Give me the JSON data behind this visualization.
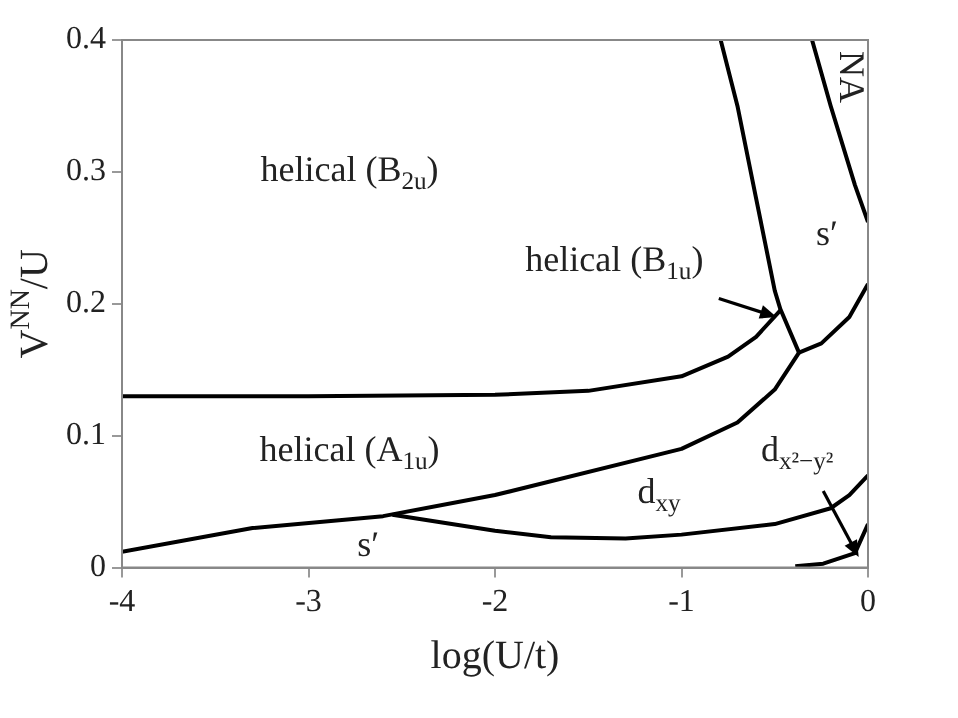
{
  "chart_data": {
    "type": "line",
    "xlabel": "log(U/t)",
    "ylabel": "V$^{NN}$/U",
    "xlim": [
      -4,
      0
    ],
    "xticks": [
      -4,
      -3,
      -2,
      -1,
      0
    ],
    "ylim": [
      0,
      0.4
    ],
    "yticks": [
      0,
      0.1,
      0.2,
      0.3,
      0.4
    ],
    "grid": false,
    "legend": false,
    "marker": "none",
    "line_style": "solid",
    "series": [
      {
        "color": "#000000",
        "x": [
          -4,
          -3,
          -2,
          -1.5,
          -1,
          -0.75,
          -0.6,
          -0.47
        ],
        "values": [
          0.13,
          0.13,
          0.131,
          0.134,
          0.145,
          0.16,
          0.175,
          0.195
        ]
      },
      {
        "color": "#000000",
        "x": [
          -0.79,
          -0.7,
          -0.6,
          -0.5,
          -0.47,
          -0.37
        ],
        "values": [
          0.4,
          0.35,
          0.28,
          0.21,
          0.196,
          0.163
        ]
      },
      {
        "color": "#000000",
        "x": [
          -4,
          -3.3,
          -2.6,
          -2,
          -1,
          -0.7,
          -0.5,
          -0.37
        ],
        "values": [
          0.012,
          0.03,
          0.039,
          0.055,
          0.09,
          0.11,
          0.135,
          0.163
        ]
      },
      {
        "color": "#000000",
        "x": [
          -0.37,
          -0.25,
          -0.1,
          0
        ],
        "values": [
          0.163,
          0.17,
          0.19,
          0.215
        ]
      },
      {
        "color": "#000000",
        "x": [
          -0.3,
          -0.2,
          -0.07,
          0
        ],
        "values": [
          0.4,
          0.35,
          0.29,
          0.262
        ]
      },
      {
        "color": "#000000",
        "x": [
          -2.55,
          -2,
          -1.7,
          -1.3,
          -1,
          -0.5,
          -0.2,
          -0.1,
          0
        ],
        "values": [
          0.04,
          0.028,
          0.023,
          0.022,
          0.025,
          0.033,
          0.045,
          0.055,
          0.07
        ]
      },
      {
        "color": "#000000",
        "x": [
          -0.39,
          -0.24,
          -0.07,
          0
        ],
        "values": [
          0.001,
          0.003,
          0.011,
          0.033
        ]
      }
    ],
    "annotations": [
      "helical (B$_{2u}$)",
      {
        "text": "helical (B$_{1u}$)",
        "x": -0.49,
        "y": 0.19
      },
      "helical (A$_{1u}$)",
      "d$_{xy}$",
      {
        "text": "d$_{x²−y²}$",
        "x": -0.05,
        "y": 0.008
      },
      "s′",
      "s′",
      "NA"
    ]
  }
}
